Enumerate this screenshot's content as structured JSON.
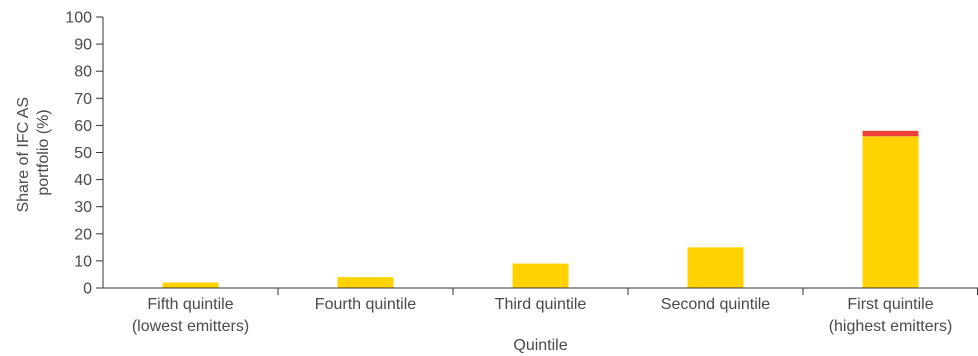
{
  "chart_data": {
    "type": "bar",
    "stacked": true,
    "categories": [
      [
        "Fifth quintile",
        "(lowest emitters)"
      ],
      [
        "Fourth quintile"
      ],
      [
        "Third quintile"
      ],
      [
        "Second quintile"
      ],
      [
        "First quintile",
        "(highest emitters)"
      ]
    ],
    "series": [
      {
        "color": "#FFD200",
        "values": [
          2,
          4,
          9,
          15,
          56
        ]
      },
      {
        "color": "#EF3F3A",
        "values": [
          0,
          0,
          0,
          0,
          2
        ]
      }
    ],
    "xlabel": "Quintile",
    "ylabel": [
      "Share of IFC AS",
      "portfolio (%)"
    ],
    "ylim": [
      0,
      100
    ],
    "yticks": [
      0,
      10,
      20,
      30,
      40,
      50,
      60,
      70,
      80,
      90,
      100
    ],
    "grid": false,
    "legend": "none"
  }
}
